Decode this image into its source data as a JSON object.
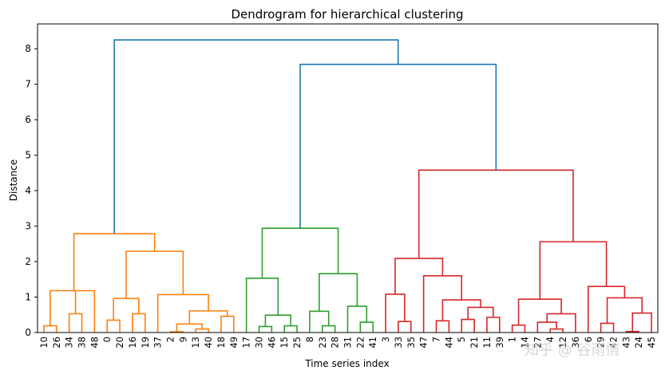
{
  "chart_data": {
    "type": "dendrogram",
    "title": "Dendrogram for hierarchical clustering",
    "xlabel": "Time series index",
    "ylabel": "Distance",
    "ylim": [
      0,
      8.7
    ],
    "yticks": [
      0,
      1,
      2,
      3,
      4,
      5,
      6,
      7,
      8
    ],
    "grid": false,
    "leaves": [
      10,
      26,
      34,
      38,
      48,
      0,
      20,
      16,
      19,
      37,
      2,
      9,
      13,
      40,
      18,
      49,
      17,
      30,
      46,
      15,
      25,
      8,
      23,
      28,
      31,
      22,
      41,
      3,
      33,
      35,
      47,
      7,
      44,
      5,
      21,
      11,
      39,
      1,
      14,
      27,
      4,
      12,
      36,
      6,
      29,
      42,
      43,
      24,
      45
    ],
    "cluster_colors": {
      "orange": "#ff7f0e",
      "green": "#2ca02c",
      "red": "#d62728",
      "above_threshold": "#1f77b4"
    },
    "links": [
      {
        "a": 0,
        "b": 1,
        "h": 0.19,
        "c": "orange"
      },
      {
        "a": 2,
        "b": 3,
        "h": 0.53,
        "c": "orange"
      },
      {
        "a": "L0",
        "b": 4,
        "h": 1.18,
        "c": "orange"
      },
      {
        "a": "L2",
        "b": "L1",
        "h": 1.18,
        "c": "orange"
      },
      {
        "a": 5,
        "b": 6,
        "h": 0.35,
        "c": "orange"
      },
      {
        "a": 7,
        "b": 8,
        "h": 0.53,
        "c": "orange"
      },
      {
        "a": "L4",
        "b": "L5",
        "h": 0.96,
        "c": "orange"
      },
      {
        "a": 10,
        "b": 11,
        "h": 0.02,
        "c": "orange"
      },
      {
        "a": 12,
        "b": 13,
        "h": 0.1,
        "c": "orange"
      },
      {
        "a": "L7",
        "b": "L8",
        "h": 0.24,
        "c": "orange"
      },
      {
        "a": 14,
        "b": 15,
        "h": 0.46,
        "c": "orange"
      },
      {
        "a": "L9",
        "b": "L10",
        "h": 0.61,
        "c": "orange"
      },
      {
        "a": 9,
        "b": "L11",
        "h": 1.07,
        "c": "orange"
      },
      {
        "a": "L6",
        "b": "L12",
        "h": 2.29,
        "c": "orange"
      },
      {
        "a": "L3",
        "b": "L13",
        "h": 2.79,
        "c": "orange"
      },
      {
        "a": 17,
        "b": 18,
        "h": 0.17,
        "c": "green"
      },
      {
        "a": 19,
        "b": 20,
        "h": 0.19,
        "c": "green"
      },
      {
        "a": "L15",
        "b": "L16",
        "h": 0.49,
        "c": "green"
      },
      {
        "a": 16,
        "b": "L17",
        "h": 1.53,
        "c": "green"
      },
      {
        "a": 22,
        "b": 23,
        "h": 0.19,
        "c": "green"
      },
      {
        "a": 21,
        "b": "L19",
        "h": 0.6,
        "c": "green"
      },
      {
        "a": 25,
        "b": 26,
        "h": 0.29,
        "c": "green"
      },
      {
        "a": 24,
        "b": "L21",
        "h": 0.74,
        "c": "green"
      },
      {
        "a": "L20",
        "b": "L22",
        "h": 1.66,
        "c": "green"
      },
      {
        "a": "L18",
        "b": "L23",
        "h": 2.94,
        "c": "green"
      },
      {
        "a": 28,
        "b": 29,
        "h": 0.31,
        "c": "red"
      },
      {
        "a": 27,
        "b": "L25",
        "h": 1.08,
        "c": "red"
      },
      {
        "a": 31,
        "b": 32,
        "h": 0.33,
        "c": "red"
      },
      {
        "a": 33,
        "b": 34,
        "h": 0.37,
        "c": "red"
      },
      {
        "a": 35,
        "b": 36,
        "h": 0.43,
        "c": "red"
      },
      {
        "a": "L28",
        "b": "L29",
        "h": 0.71,
        "c": "red"
      },
      {
        "a": "L27",
        "b": "L30",
        "h": 0.92,
        "c": "red"
      },
      {
        "a": 30,
        "b": "L31",
        "h": 1.6,
        "c": "red"
      },
      {
        "a": "L26",
        "b": "L32",
        "h": 2.09,
        "c": "red"
      },
      {
        "a": 37,
        "b": 38,
        "h": 0.21,
        "c": "red"
      },
      {
        "a": 40,
        "b": 41,
        "h": 0.1,
        "c": "red"
      },
      {
        "a": 39,
        "b": "L35",
        "h": 0.29,
        "c": "red"
      },
      {
        "a": "L36",
        "b": 42,
        "h": 0.53,
        "c": "red"
      },
      {
        "a": "L34",
        "b": "L37",
        "h": 0.94,
        "c": "red"
      },
      {
        "a": 44,
        "b": 45,
        "h": 0.26,
        "c": "red"
      },
      {
        "a": 46,
        "b": 47,
        "h": 0.03,
        "c": "red"
      },
      {
        "a": "L40",
        "b": 48,
        "h": 0.55,
        "c": "red"
      },
      {
        "a": "L39",
        "b": "L41",
        "h": 0.98,
        "c": "red"
      },
      {
        "a": 43,
        "b": "L42",
        "h": 1.3,
        "c": "red"
      },
      {
        "a": "L38",
        "b": "L43",
        "h": 2.56,
        "c": "red"
      },
      {
        "a": "L33",
        "b": "L44",
        "h": 4.58,
        "c": "red"
      },
      {
        "a": "L24",
        "b": "L45",
        "h": 7.56,
        "c": "above_threshold"
      },
      {
        "a": "L14",
        "b": "L46",
        "h": 8.25,
        "c": "above_threshold"
      }
    ]
  },
  "watermark_text": "知乎 @ 谷雨情"
}
